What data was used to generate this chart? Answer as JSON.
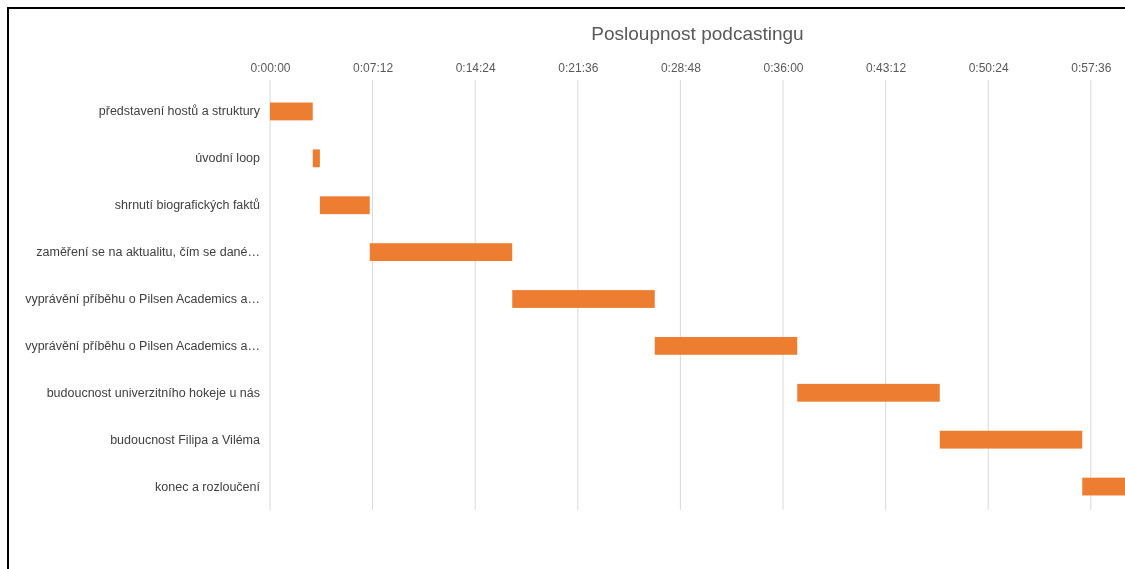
{
  "chart_data": {
    "type": "bar",
    "orientation": "horizontal",
    "title": "Posloupnost podcastingu",
    "categories": [
      "představení hostů a struktury",
      "úvodní loop",
      "shrnutí biografických faktů",
      "zaměření se na aktualitu, čím se dané…",
      "vyprávění příběhu o Pilsen Academics a…",
      "vyprávění příběhu o Pilsen Academics a…",
      "budoucnost univerzitního hokeje u nás",
      "budoucnost Filipa a Viléma",
      "konec a rozloučení"
    ],
    "base": [
      0,
      180,
      210,
      420,
      1020,
      1620,
      2220,
      2820,
      3420
    ],
    "values": [
      180,
      30,
      210,
      600,
      600,
      600,
      600,
      600,
      180
    ],
    "color": "#ed7d31",
    "xlim": [
      0,
      3600
    ],
    "xticks": [
      {
        "value": 0,
        "label": "0:00:00"
      },
      {
        "value": 432,
        "label": "0:07:12"
      },
      {
        "value": 864,
        "label": "0:14:24"
      },
      {
        "value": 1296,
        "label": "0:21:36"
      },
      {
        "value": 1728,
        "label": "0:28:48"
      },
      {
        "value": 2160,
        "label": "0:36:00"
      },
      {
        "value": 2592,
        "label": "0:43:12"
      },
      {
        "value": 3024,
        "label": "0:50:24"
      },
      {
        "value": 3456,
        "label": "0:57:36"
      }
    ],
    "grid": "x"
  }
}
